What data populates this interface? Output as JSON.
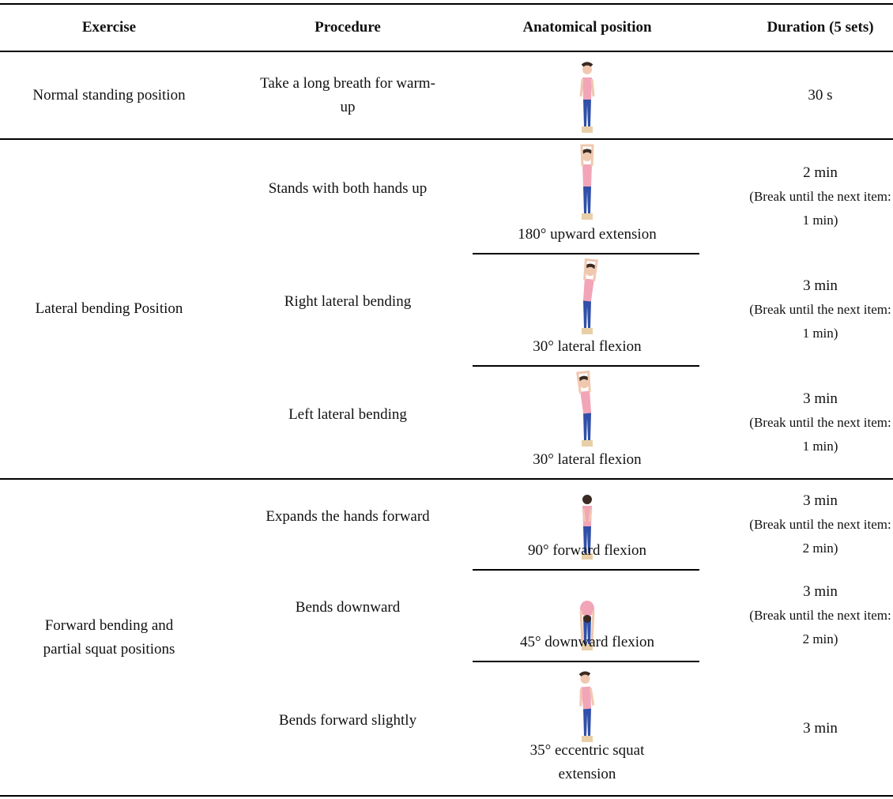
{
  "header": [
    "Exercise",
    "Procedure",
    "Anatomical position",
    "Duration (5 sets)"
  ],
  "groups": [
    {
      "exercise": "Normal standing position",
      "items": [
        {
          "procedure": "Take a long breath for warm-up",
          "duration": "30 s"
        }
      ]
    },
    {
      "exercise": "Lateral bending Position",
      "items": [
        {
          "procedure": "Stands with both hands up",
          "position": "180° upward extension",
          "duration": "2 min",
          "note": "(Break until the next item: 1 min)"
        },
        {
          "procedure": "Right lateral bending",
          "position": "30° lateral flexion",
          "duration": "3 min",
          "note": "(Break until the next item: 1 min)"
        },
        {
          "procedure": "Left lateral bending",
          "position": "30° lateral flexion",
          "duration": "3 min",
          "note": "(Break until the next item: 1 min)"
        }
      ]
    },
    {
      "exercise": "Forward bending and partial squat positions",
      "items": [
        {
          "procedure": "Expands the hands forward",
          "position": "90° forward flexion",
          "duration": "3 min",
          "note": "(Break until the next item: 2 min)"
        },
        {
          "procedure": "Bends downward",
          "position": "45° downward flexion",
          "duration": "3 min",
          "note": "(Break until the next item: 2 min)"
        },
        {
          "procedure": "Bends forward slightly",
          "position": "35° eccentric squat extension",
          "duration": "3 min"
        }
      ]
    }
  ]
}
